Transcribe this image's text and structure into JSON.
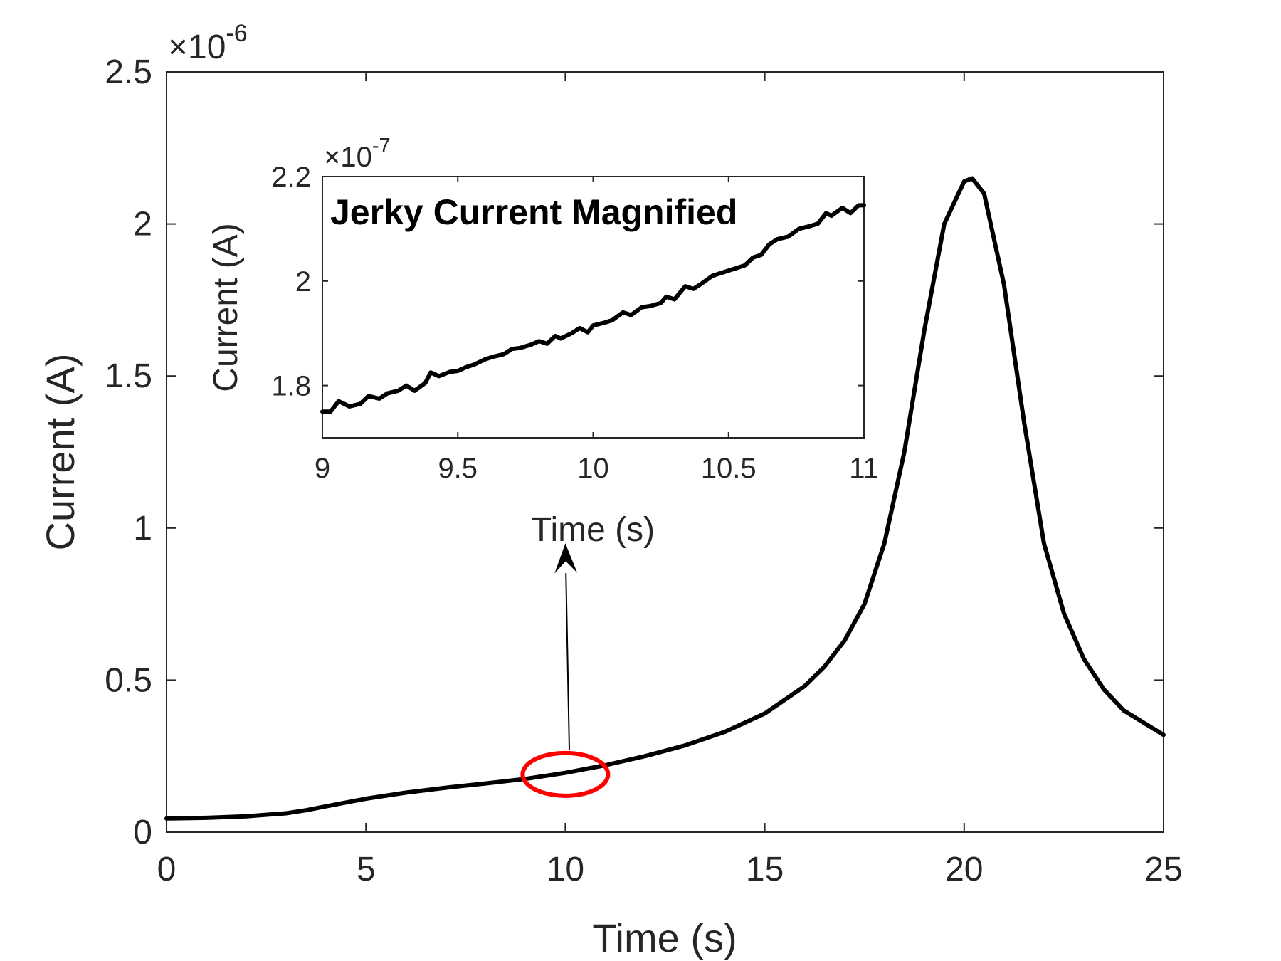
{
  "chart_data": [
    {
      "name": "main",
      "type": "line",
      "title": "",
      "xlabel": "Time (s)",
      "ylabel": "Current (A)",
      "xlim": [
        0,
        25
      ],
      "ylim": [
        0,
        2.5
      ],
      "xticks": [
        0,
        5,
        10,
        15,
        20,
        25
      ],
      "yticks": [
        0,
        0.5,
        1,
        1.5,
        2,
        2.5
      ],
      "xtick_labels": [
        "0",
        "5",
        "10",
        "15",
        "20",
        "25"
      ],
      "ytick_labels": [
        "0",
        "0.5",
        "1",
        "1.5",
        "2",
        "2.5"
      ],
      "exponent_label": "×10",
      "exponent_power": "-6",
      "grid": false,
      "series": [
        {
          "name": "Current",
          "color": "#000000",
          "x": [
            0,
            1,
            2,
            3,
            3.5,
            4,
            5,
            6,
            7,
            8,
            9,
            10,
            11,
            12,
            13,
            14,
            15,
            16,
            16.5,
            17,
            17.5,
            18,
            18.5,
            19,
            19.5,
            20,
            20.2,
            20.5,
            21,
            21.5,
            22,
            22.5,
            23,
            23.5,
            24,
            24.5,
            25
          ],
          "values": [
            0.045,
            0.047,
            0.052,
            0.062,
            0.072,
            0.085,
            0.11,
            0.13,
            0.146,
            0.16,
            0.175,
            0.195,
            0.22,
            0.25,
            0.285,
            0.33,
            0.39,
            0.48,
            0.545,
            0.63,
            0.75,
            0.95,
            1.25,
            1.65,
            2.0,
            2.14,
            2.15,
            2.1,
            1.8,
            1.35,
            0.95,
            0.72,
            0.57,
            0.47,
            0.4,
            0.36,
            0.32
          ]
        }
      ],
      "annotations": [
        {
          "type": "ellipse",
          "color": "#ff0000",
          "x": 10,
          "y": 0.19
        },
        {
          "type": "arrow",
          "color": "#000000",
          "from": [
            10.1,
            0.27
          ],
          "to": [
            10.0,
            0.95
          ]
        }
      ]
    },
    {
      "name": "inset",
      "type": "line",
      "title": "Jerky Current Magnified",
      "xlabel": "Time (s)",
      "ylabel": "Current (A)",
      "xlim": [
        9,
        11
      ],
      "ylim": [
        1.7,
        2.2
      ],
      "xticks": [
        9,
        9.5,
        10,
        10.5,
        11
      ],
      "yticks": [
        1.8,
        2,
        2.2
      ],
      "xtick_labels": [
        "9",
        "9.5",
        "10",
        "10.5",
        "11"
      ],
      "ytick_labels": [
        "1.8",
        "2",
        "2.2"
      ],
      "exponent_label": "×10",
      "exponent_power": "-7",
      "grid": false,
      "series": [
        {
          "name": "Current",
          "color": "#000000",
          "x": [
            9.0,
            9.03,
            9.06,
            9.1,
            9.14,
            9.17,
            9.21,
            9.24,
            9.28,
            9.31,
            9.34,
            9.38,
            9.4,
            9.43,
            9.47,
            9.5,
            9.53,
            9.56,
            9.6,
            9.63,
            9.67,
            9.7,
            9.73,
            9.77,
            9.8,
            9.83,
            9.86,
            9.88,
            9.92,
            9.95,
            9.98,
            10.0,
            10.04,
            10.07,
            10.11,
            10.14,
            10.18,
            10.21,
            10.25,
            10.27,
            10.3,
            10.34,
            10.37,
            10.4,
            10.44,
            10.47,
            10.5,
            10.53,
            10.56,
            10.59,
            10.62,
            10.65,
            10.68,
            10.72,
            10.76,
            10.8,
            10.83,
            10.86,
            10.88,
            10.92,
            10.95,
            10.98,
            11.0
          ],
          "values": [
            1.75,
            1.75,
            1.77,
            1.76,
            1.765,
            1.78,
            1.775,
            1.785,
            1.79,
            1.8,
            1.79,
            1.805,
            1.825,
            1.818,
            1.826,
            1.828,
            1.835,
            1.84,
            1.85,
            1.855,
            1.86,
            1.87,
            1.872,
            1.878,
            1.885,
            1.88,
            1.895,
            1.89,
            1.9,
            1.91,
            1.902,
            1.915,
            1.92,
            1.925,
            1.94,
            1.935,
            1.95,
            1.952,
            1.958,
            1.97,
            1.965,
            1.99,
            1.985,
            1.995,
            2.01,
            2.015,
            2.02,
            2.025,
            2.03,
            2.045,
            2.05,
            2.07,
            2.08,
            2.085,
            2.1,
            2.105,
            2.11,
            2.13,
            2.125,
            2.14,
            2.13,
            2.145,
            2.145
          ]
        }
      ]
    }
  ]
}
